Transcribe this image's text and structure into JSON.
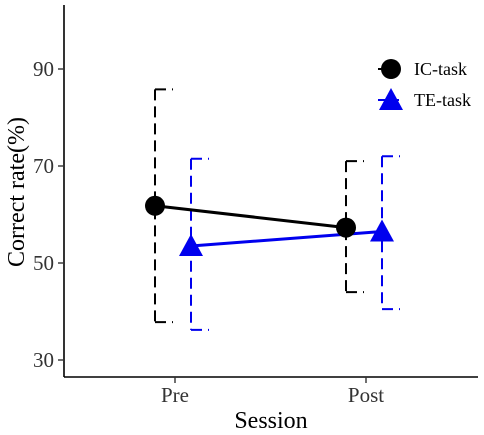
{
  "chart_data": {
    "type": "line",
    "title": "",
    "xlabel": "Session",
    "ylabel": "Correct rate(%)",
    "categories": [
      "Pre",
      "Post"
    ],
    "ylim": [
      27.5,
      100
    ],
    "yticks": [
      "30",
      "50",
      "70",
      "90"
    ],
    "grid": false,
    "legend_position": "top-right",
    "series": [
      {
        "name": "IC-task",
        "marker": "circle",
        "color": "#000000",
        "values": [
          61.8,
          57.3
        ],
        "error_low": [
          37.8,
          44.0
        ],
        "error_high": [
          85.8,
          71.0
        ]
      },
      {
        "name": "TE-task",
        "marker": "triangle",
        "color": "#0000ee",
        "values": [
          53.5,
          56.5
        ],
        "error_low": [
          36.2,
          40.5
        ],
        "error_high": [
          71.5,
          72.0
        ]
      }
    ]
  }
}
